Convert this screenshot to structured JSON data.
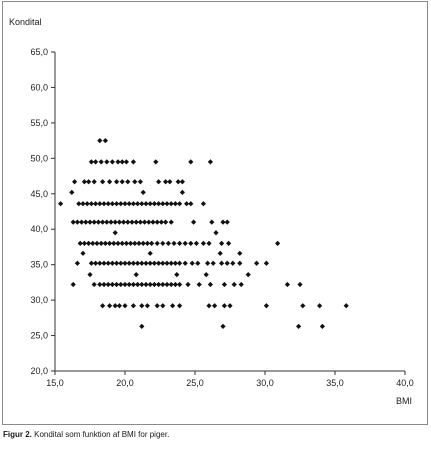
{
  "chart_data": {
    "type": "scatter",
    "ylabel": "Kondital",
    "xlabel": "BMI",
    "xlim": [
      15.0,
      40.0
    ],
    "ylim": [
      20.0,
      65.0
    ],
    "x_ticks": [
      "15,0",
      "20,0",
      "25,0",
      "30,0",
      "35,0",
      "40,0"
    ],
    "y_ticks": [
      "20,0",
      "25,0",
      "30,0",
      "35,0",
      "40,0",
      "45,0",
      "50,0",
      "55,0",
      "60,0",
      "65,0"
    ],
    "grid": false,
    "marker": "diamond",
    "marker_color": "#111111",
    "points": [
      [
        18.2,
        52.5
      ],
      [
        18.6,
        52.5
      ],
      [
        17.6,
        49.5
      ],
      [
        17.9,
        49.5
      ],
      [
        18.3,
        49.5
      ],
      [
        18.7,
        49.5
      ],
      [
        19.1,
        49.5
      ],
      [
        19.5,
        49.5
      ],
      [
        19.8,
        49.5
      ],
      [
        20.1,
        49.5
      ],
      [
        20.6,
        49.5
      ],
      [
        22.2,
        49.5
      ],
      [
        24.7,
        49.5
      ],
      [
        26.1,
        49.5
      ],
      [
        16.4,
        46.7
      ],
      [
        17.1,
        46.7
      ],
      [
        17.4,
        46.7
      ],
      [
        17.8,
        46.7
      ],
      [
        18.4,
        46.7
      ],
      [
        18.9,
        46.7
      ],
      [
        19.4,
        46.7
      ],
      [
        19.8,
        46.7
      ],
      [
        20.2,
        46.7
      ],
      [
        20.7,
        46.7
      ],
      [
        21.1,
        46.7
      ],
      [
        22.4,
        46.7
      ],
      [
        22.9,
        46.7
      ],
      [
        23.2,
        46.7
      ],
      [
        23.8,
        46.7
      ],
      [
        24.1,
        46.7
      ],
      [
        16.2,
        45.2
      ],
      [
        21.3,
        45.2
      ],
      [
        24.1,
        45.2
      ],
      [
        15.4,
        43.6
      ],
      [
        16.7,
        43.6
      ],
      [
        17.0,
        43.6
      ],
      [
        17.3,
        43.6
      ],
      [
        17.6,
        43.6
      ],
      [
        17.9,
        43.6
      ],
      [
        18.2,
        43.6
      ],
      [
        18.5,
        43.6
      ],
      [
        18.8,
        43.6
      ],
      [
        19.1,
        43.6
      ],
      [
        19.4,
        43.6
      ],
      [
        19.7,
        43.6
      ],
      [
        20.0,
        43.6
      ],
      [
        20.3,
        43.6
      ],
      [
        20.6,
        43.6
      ],
      [
        20.9,
        43.6
      ],
      [
        21.2,
        43.6
      ],
      [
        21.5,
        43.6
      ],
      [
        21.8,
        43.6
      ],
      [
        22.1,
        43.6
      ],
      [
        22.4,
        43.6
      ],
      [
        22.7,
        43.6
      ],
      [
        23.0,
        43.6
      ],
      [
        23.3,
        43.6
      ],
      [
        23.6,
        43.6
      ],
      [
        23.9,
        43.6
      ],
      [
        24.4,
        43.6
      ],
      [
        24.7,
        43.6
      ],
      [
        25.6,
        43.6
      ],
      [
        16.3,
        41.0
      ],
      [
        16.6,
        41.0
      ],
      [
        16.9,
        41.0
      ],
      [
        17.2,
        41.0
      ],
      [
        17.5,
        41.0
      ],
      [
        17.8,
        41.0
      ],
      [
        18.1,
        41.0
      ],
      [
        18.4,
        41.0
      ],
      [
        18.7,
        41.0
      ],
      [
        19.0,
        41.0
      ],
      [
        19.3,
        41.0
      ],
      [
        19.6,
        41.0
      ],
      [
        19.9,
        41.0
      ],
      [
        20.2,
        41.0
      ],
      [
        20.5,
        41.0
      ],
      [
        20.8,
        41.0
      ],
      [
        21.1,
        41.0
      ],
      [
        21.4,
        41.0
      ],
      [
        21.7,
        41.0
      ],
      [
        22.0,
        41.0
      ],
      [
        22.3,
        41.0
      ],
      [
        22.6,
        41.0
      ],
      [
        22.9,
        41.0
      ],
      [
        23.3,
        41.0
      ],
      [
        24.9,
        41.0
      ],
      [
        26.2,
        41.0
      ],
      [
        27.0,
        41.0
      ],
      [
        27.3,
        41.0
      ],
      [
        19.3,
        39.5
      ],
      [
        26.5,
        39.5
      ],
      [
        16.8,
        38.0
      ],
      [
        17.1,
        38.0
      ],
      [
        17.4,
        38.0
      ],
      [
        17.7,
        38.0
      ],
      [
        18.0,
        38.0
      ],
      [
        18.3,
        38.0
      ],
      [
        18.6,
        38.0
      ],
      [
        18.9,
        38.0
      ],
      [
        19.2,
        38.0
      ],
      [
        19.5,
        38.0
      ],
      [
        19.8,
        38.0
      ],
      [
        20.1,
        38.0
      ],
      [
        20.4,
        38.0
      ],
      [
        20.7,
        38.0
      ],
      [
        21.0,
        38.0
      ],
      [
        21.3,
        38.0
      ],
      [
        21.6,
        38.0
      ],
      [
        21.9,
        38.0
      ],
      [
        22.3,
        38.0
      ],
      [
        22.7,
        38.0
      ],
      [
        23.1,
        38.0
      ],
      [
        23.5,
        38.0
      ],
      [
        23.9,
        38.0
      ],
      [
        24.3,
        38.0
      ],
      [
        24.7,
        38.0
      ],
      [
        25.1,
        38.0
      ],
      [
        25.6,
        38.0
      ],
      [
        26.0,
        38.0
      ],
      [
        26.9,
        38.0
      ],
      [
        27.4,
        38.0
      ],
      [
        30.9,
        38.0
      ],
      [
        17.0,
        36.6
      ],
      [
        21.8,
        36.6
      ],
      [
        26.8,
        36.6
      ],
      [
        28.2,
        36.6
      ],
      [
        16.6,
        35.2
      ],
      [
        17.6,
        35.2
      ],
      [
        17.9,
        35.2
      ],
      [
        18.2,
        35.2
      ],
      [
        18.5,
        35.2
      ],
      [
        18.8,
        35.2
      ],
      [
        19.1,
        35.2
      ],
      [
        19.4,
        35.2
      ],
      [
        19.7,
        35.2
      ],
      [
        20.0,
        35.2
      ],
      [
        20.3,
        35.2
      ],
      [
        20.6,
        35.2
      ],
      [
        20.9,
        35.2
      ],
      [
        21.2,
        35.2
      ],
      [
        21.5,
        35.2
      ],
      [
        21.8,
        35.2
      ],
      [
        22.1,
        35.2
      ],
      [
        22.4,
        35.2
      ],
      [
        22.7,
        35.2
      ],
      [
        23.0,
        35.2
      ],
      [
        23.3,
        35.2
      ],
      [
        23.6,
        35.2
      ],
      [
        23.9,
        35.2
      ],
      [
        24.3,
        35.2
      ],
      [
        24.8,
        35.2
      ],
      [
        25.2,
        35.2
      ],
      [
        25.9,
        35.2
      ],
      [
        26.3,
        35.2
      ],
      [
        26.9,
        35.2
      ],
      [
        27.3,
        35.2
      ],
      [
        27.7,
        35.2
      ],
      [
        28.2,
        35.2
      ],
      [
        29.4,
        35.2
      ],
      [
        30.1,
        35.2
      ],
      [
        17.5,
        33.6
      ],
      [
        20.8,
        33.6
      ],
      [
        23.7,
        33.6
      ],
      [
        25.8,
        33.6
      ],
      [
        28.8,
        33.6
      ],
      [
        16.3,
        32.2
      ],
      [
        17.8,
        32.2
      ],
      [
        18.2,
        32.2
      ],
      [
        18.5,
        32.2
      ],
      [
        18.8,
        32.2
      ],
      [
        19.1,
        32.2
      ],
      [
        19.4,
        32.2
      ],
      [
        19.7,
        32.2
      ],
      [
        20.0,
        32.2
      ],
      [
        20.3,
        32.2
      ],
      [
        20.6,
        32.2
      ],
      [
        20.9,
        32.2
      ],
      [
        21.2,
        32.2
      ],
      [
        21.5,
        32.2
      ],
      [
        21.8,
        32.2
      ],
      [
        22.1,
        32.2
      ],
      [
        22.4,
        32.2
      ],
      [
        22.7,
        32.2
      ],
      [
        23.0,
        32.2
      ],
      [
        23.3,
        32.2
      ],
      [
        23.6,
        32.2
      ],
      [
        23.9,
        32.2
      ],
      [
        24.5,
        32.2
      ],
      [
        25.3,
        32.2
      ],
      [
        26.1,
        32.2
      ],
      [
        27.1,
        32.2
      ],
      [
        27.8,
        32.2
      ],
      [
        28.3,
        32.2
      ],
      [
        31.6,
        32.2
      ],
      [
        32.5,
        32.2
      ],
      [
        18.4,
        29.2
      ],
      [
        18.9,
        29.2
      ],
      [
        19.3,
        29.2
      ],
      [
        19.6,
        29.2
      ],
      [
        20.0,
        29.2
      ],
      [
        20.6,
        29.2
      ],
      [
        21.2,
        29.2
      ],
      [
        21.6,
        29.2
      ],
      [
        22.3,
        29.2
      ],
      [
        22.7,
        29.2
      ],
      [
        23.4,
        29.2
      ],
      [
        23.9,
        29.2
      ],
      [
        26.0,
        29.2
      ],
      [
        26.4,
        29.2
      ],
      [
        27.1,
        29.2
      ],
      [
        27.5,
        29.2
      ],
      [
        30.1,
        29.2
      ],
      [
        32.7,
        29.2
      ],
      [
        33.9,
        29.2
      ],
      [
        35.8,
        29.2
      ],
      [
        21.2,
        26.3
      ],
      [
        27.0,
        26.3
      ],
      [
        32.4,
        26.3
      ],
      [
        34.1,
        26.3
      ]
    ]
  },
  "caption": {
    "label": "Figur 2.",
    "text": " Kondital som funktion af BMI for piger."
  }
}
